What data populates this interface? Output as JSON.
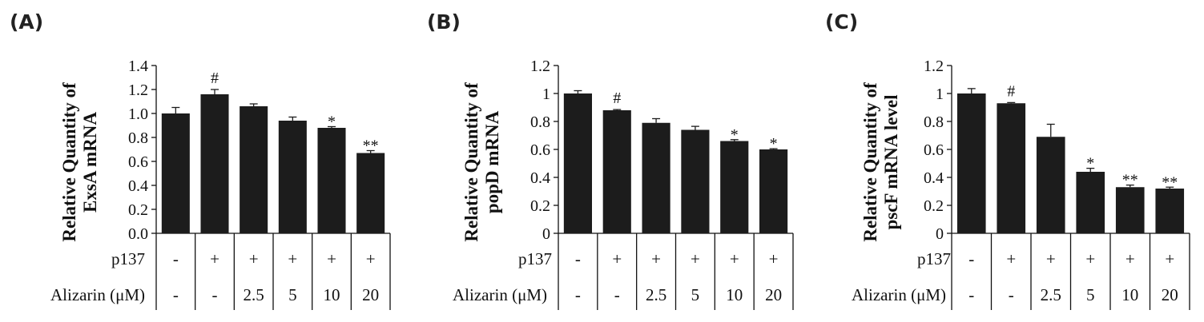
{
  "chart_data": [
    {
      "type": "bar",
      "panel_label": "(A)",
      "ylabel_lines": [
        "Relative Quantity of",
        "ExsA mRNA"
      ],
      "yticks": [
        "0.0",
        "0.2",
        "0.4",
        "0.6",
        "0.8",
        "1.0",
        "1.2",
        "1.4"
      ],
      "ylim": [
        0,
        1.4
      ],
      "row_labels": [
        "p137",
        "Alizarin (μM)"
      ],
      "p137": [
        "-",
        "+",
        "+",
        "+",
        "+",
        "+"
      ],
      "alizarin": [
        "-",
        "-",
        "2.5",
        "5",
        "10",
        "20"
      ],
      "values": [
        1.0,
        1.16,
        1.06,
        0.94,
        0.88,
        0.67
      ],
      "errors": [
        0.05,
        0.04,
        0.02,
        0.03,
        0.01,
        0.02
      ],
      "annotations": [
        "",
        "#",
        "",
        "",
        "*",
        "**"
      ]
    },
    {
      "type": "bar",
      "panel_label": "(B)",
      "ylabel_lines": [
        "Relative Quantity of",
        "popD mRNA"
      ],
      "yticks": [
        "0",
        "0.2",
        "0.4",
        "0.6",
        "0.8",
        "1",
        "1.2"
      ],
      "ylim": [
        0,
        1.2
      ],
      "row_labels": [
        "p137",
        "Alizarin (μM)"
      ],
      "p137": [
        "-",
        "+",
        "+",
        "+",
        "+",
        "+"
      ],
      "alizarin": [
        "-",
        "-",
        "2.5",
        "5",
        "10",
        "20"
      ],
      "values": [
        1.0,
        0.88,
        0.79,
        0.74,
        0.66,
        0.6
      ],
      "errors": [
        0.02,
        0.005,
        0.03,
        0.025,
        0.01,
        0.005
      ],
      "annotations": [
        "",
        "#",
        "",
        "",
        "*",
        "*"
      ]
    },
    {
      "type": "bar",
      "panel_label": "(C)",
      "ylabel_lines": [
        "Relative Quantity of",
        "pscF mRNA level"
      ],
      "yticks": [
        "0",
        "0.2",
        "0.4",
        "0.6",
        "0.8",
        "1",
        "1.2"
      ],
      "ylim": [
        0,
        1.2
      ],
      "row_labels": [
        "p137",
        "Alizarin (μM)"
      ],
      "p137": [
        "-",
        "+",
        "+",
        "+",
        "+",
        "+"
      ],
      "alizarin": [
        "-",
        "-",
        "2.5",
        "5",
        "10",
        "20"
      ],
      "values": [
        1.0,
        0.93,
        0.69,
        0.44,
        0.33,
        0.32
      ],
      "errors": [
        0.035,
        0.005,
        0.09,
        0.025,
        0.015,
        0.01
      ],
      "annotations": [
        "",
        "#",
        "",
        "*",
        "**",
        "**"
      ]
    }
  ]
}
